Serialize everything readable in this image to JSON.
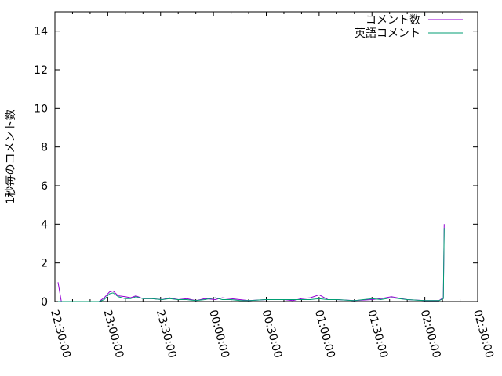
{
  "chart_data": {
    "type": "line",
    "title": "",
    "xlabel": "",
    "ylabel": "1秒毎のコメント数",
    "xlim": [
      "22:30:00",
      "02:30:00"
    ],
    "ylim": [
      0,
      15
    ],
    "x_ticks": [
      "22:30:00",
      "23:00:00",
      "23:30:00",
      "00:00:00",
      "00:30:00",
      "01:00:00",
      "01:30:00",
      "02:00:00",
      "02:30:00"
    ],
    "y_ticks": [
      "0",
      "2",
      "4",
      "6",
      "8",
      "10",
      "12",
      "14"
    ],
    "legend_position": "top-right",
    "grid": false,
    "series": [
      {
        "name": "コメント数",
        "color": "#9400d3",
        "x": [
          "22:31:48",
          "22:33:40",
          "22:45:00",
          "22:55:00",
          "22:58:00",
          "23:01:00",
          "23:03:00",
          "23:06:00",
          "23:10:00",
          "23:13:00",
          "23:16:00",
          "23:20:00",
          "23:25:00",
          "23:31:00",
          "23:35:00",
          "23:40:00",
          "23:45:00",
          "23:50:00",
          "23:55:00",
          "00:01:00",
          "00:05:00",
          "00:10:00",
          "00:15:00",
          "00:20:00",
          "00:30:00",
          "00:40:00",
          "00:45:00",
          "00:50:00",
          "00:55:00",
          "01:00:00",
          "01:05:00",
          "01:10:00",
          "01:20:00",
          "01:30:00",
          "01:35:00",
          "01:41:00",
          "01:50:00",
          "02:00:00",
          "02:08:00",
          "02:10:30",
          "02:11:00"
        ],
        "y": [
          1.0,
          0,
          0,
          0,
          0.2,
          0.5,
          0.55,
          0.3,
          0.25,
          0.2,
          0.3,
          0.15,
          0.15,
          0.1,
          0.2,
          0.1,
          0.15,
          0.05,
          0.15,
          0.1,
          0.2,
          0.15,
          0.1,
          0.05,
          0.1,
          0.1,
          0.05,
          0.15,
          0.2,
          0.35,
          0.1,
          0.1,
          0.05,
          0.1,
          0.15,
          0.25,
          0.1,
          0.05,
          0.05,
          0.2,
          4.0
        ]
      },
      {
        "name": "英語コメント",
        "color": "#009e73",
        "x": [
          "22:31:48",
          "22:33:40",
          "22:45:00",
          "22:55:00",
          "22:58:00",
          "23:01:00",
          "23:03:00",
          "23:06:00",
          "23:10:00",
          "23:13:00",
          "23:16:00",
          "23:20:00",
          "23:25:00",
          "23:31:00",
          "23:35:00",
          "23:40:00",
          "23:45:00",
          "23:50:00",
          "23:55:00",
          "00:01:00",
          "00:05:00",
          "00:10:00",
          "00:15:00",
          "00:20:00",
          "00:30:00",
          "00:40:00",
          "00:45:00",
          "00:50:00",
          "00:55:00",
          "01:00:00",
          "01:05:00",
          "01:10:00",
          "01:20:00",
          "01:30:00",
          "01:35:00",
          "01:41:00",
          "01:50:00",
          "02:00:00",
          "02:08:00",
          "02:10:30",
          "02:11:00"
        ],
        "y": [
          0,
          0,
          0,
          0,
          0.1,
          0.4,
          0.45,
          0.25,
          0.15,
          0.15,
          0.25,
          0.15,
          0.15,
          0.1,
          0.15,
          0.1,
          0.1,
          0.05,
          0.1,
          0.2,
          0.1,
          0.1,
          0.05,
          0.05,
          0.1,
          0.1,
          0.1,
          0.1,
          0.1,
          0.15,
          0.1,
          0.1,
          0.05,
          0.15,
          0.1,
          0.2,
          0.1,
          0.05,
          0.05,
          0.15,
          3.8
        ]
      }
    ]
  }
}
